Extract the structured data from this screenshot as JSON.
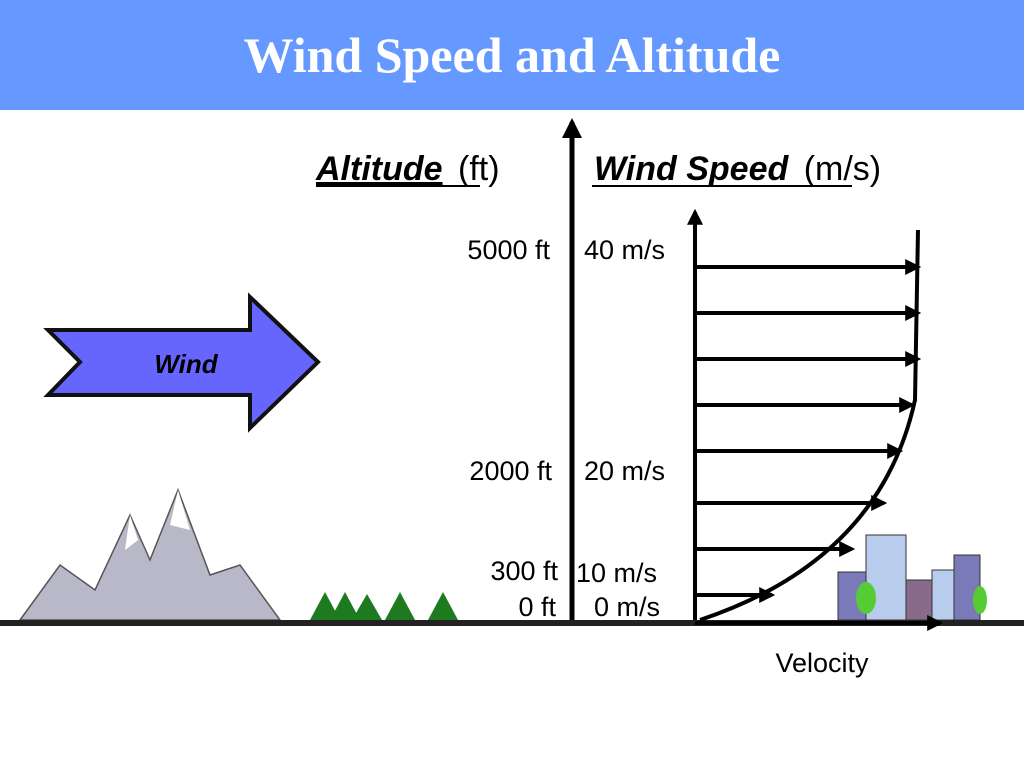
{
  "title": "Wind Speed and Altitude",
  "axis_labels": {
    "altitude": "Altitude",
    "altitude_unit": "(ft)",
    "wind_speed": "Wind Speed",
    "wind_speed_unit": "(m/s)",
    "velocity": "Velocity"
  },
  "altitude_labels": [
    "5000 ft",
    "2000 ft",
    "300 ft",
    "0 ft"
  ],
  "speed_labels": [
    "40 m/s",
    "20 m/s",
    "10 m/s",
    "0 m/s"
  ],
  "wind_label": "Wind"
}
